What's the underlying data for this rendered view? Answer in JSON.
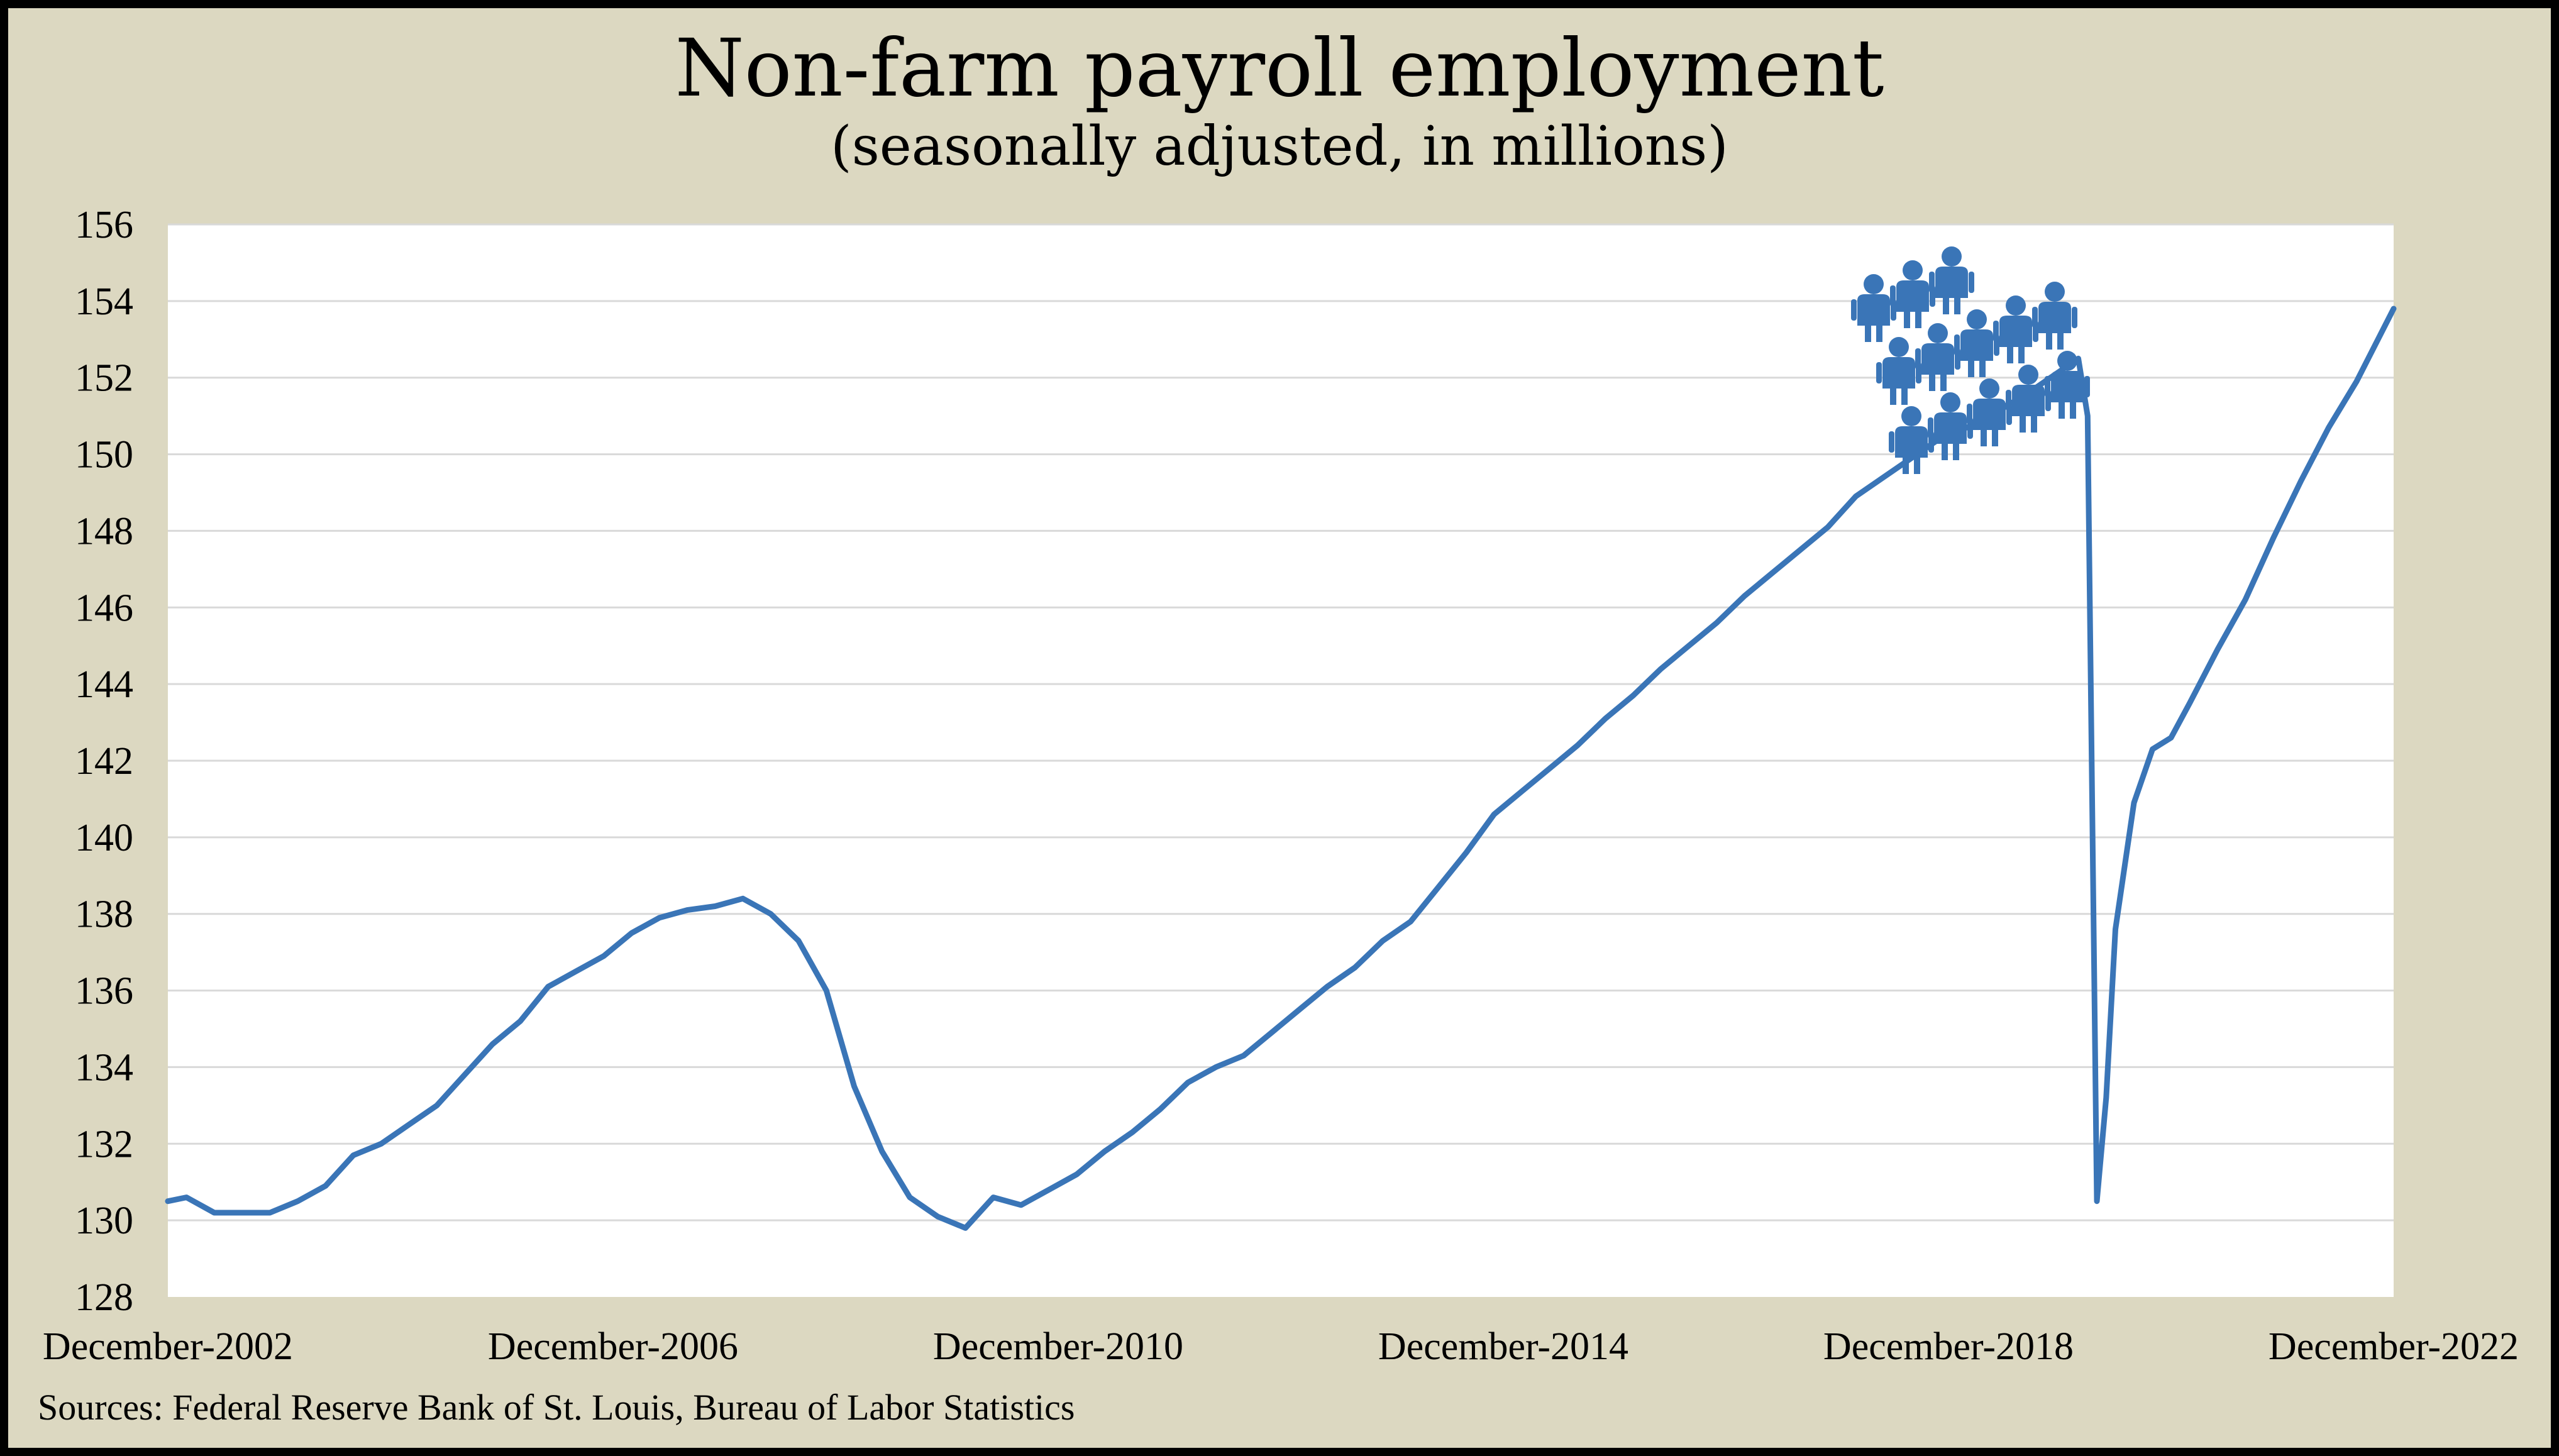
{
  "chart_data": {
    "type": "line",
    "title": "Non-farm payroll employment",
    "subtitle": "(seasonally adjusted, in millions)",
    "source": "Sources: Federal Reserve Bank of St. Louis, Bureau of Labor Statistics",
    "xlabel": "",
    "ylabel": "",
    "ylim": [
      128,
      156
    ],
    "yticks": [
      128,
      130,
      132,
      134,
      136,
      138,
      140,
      142,
      144,
      146,
      148,
      150,
      152,
      154,
      156
    ],
    "xlim": [
      "2002-12",
      "2022-12"
    ],
    "xtick_labels": [
      "December-2002",
      "December-2006",
      "December-2010",
      "December-2014",
      "December-2018",
      "December-2022"
    ],
    "xticks": [
      "2002-12",
      "2006-12",
      "2010-12",
      "2014-12",
      "2018-12",
      "2022-12"
    ],
    "grid": "horizontal",
    "legend": "none",
    "line_color": "#3a75b7",
    "annotation_icon": "people-group-icon",
    "series": [
      {
        "x": [
          "2002-12",
          "2003-02",
          "2003-05",
          "2003-08",
          "2003-11",
          "2004-02",
          "2004-05",
          "2004-08",
          "2004-11",
          "2005-02",
          "2005-05",
          "2005-08",
          "2005-11",
          "2006-02",
          "2006-05",
          "2006-08",
          "2006-11",
          "2007-02",
          "2007-05",
          "2007-08",
          "2007-11",
          "2008-02",
          "2008-05",
          "2008-08",
          "2008-11",
          "2009-02",
          "2009-05",
          "2009-08",
          "2009-11",
          "2010-02",
          "2010-05",
          "2010-08",
          "2010-11",
          "2011-02",
          "2011-05",
          "2011-08",
          "2011-11",
          "2012-02",
          "2012-05",
          "2012-08",
          "2012-11",
          "2013-02",
          "2013-05",
          "2013-08",
          "2013-11",
          "2014-02",
          "2014-05",
          "2014-08",
          "2014-11",
          "2015-02",
          "2015-05",
          "2015-08",
          "2015-11",
          "2016-02",
          "2016-05",
          "2016-08",
          "2016-11",
          "2017-02",
          "2017-05",
          "2017-08",
          "2017-11",
          "2018-02",
          "2018-05",
          "2018-08",
          "2018-11",
          "2019-02",
          "2019-05",
          "2019-08",
          "2019-11",
          "2020-02",
          "2020-03",
          "2020-04",
          "2020-05",
          "2020-06",
          "2020-08",
          "2020-10",
          "2020-12",
          "2021-02",
          "2021-05",
          "2021-08",
          "2021-11",
          "2022-02",
          "2022-05",
          "2022-08",
          "2022-12"
        ],
        "values": [
          130.5,
          130.6,
          130.2,
          130.2,
          130.2,
          130.5,
          130.9,
          131.7,
          132.0,
          132.5,
          133.0,
          133.8,
          134.6,
          135.2,
          136.1,
          136.5,
          136.9,
          137.5,
          137.9,
          138.1,
          138.2,
          138.4,
          138.0,
          137.3,
          136.0,
          133.5,
          131.8,
          130.6,
          130.1,
          129.8,
          130.6,
          130.4,
          130.8,
          131.2,
          131.8,
          132.3,
          132.9,
          133.6,
          134.0,
          134.3,
          134.9,
          135.5,
          136.1,
          136.6,
          137.3,
          137.8,
          138.7,
          139.6,
          140.6,
          141.2,
          141.8,
          142.4,
          143.1,
          143.7,
          144.4,
          145.0,
          145.6,
          146.3,
          146.9,
          147.5,
          148.1,
          148.9,
          149.4,
          149.9,
          150.4,
          150.7,
          151.1,
          151.5,
          152.0,
          152.5,
          151.0,
          130.5,
          133.2,
          137.6,
          140.9,
          142.3,
          142.6,
          143.5,
          144.9,
          146.2,
          147.8,
          149.3,
          150.7,
          151.9,
          153.8
        ]
      }
    ]
  }
}
